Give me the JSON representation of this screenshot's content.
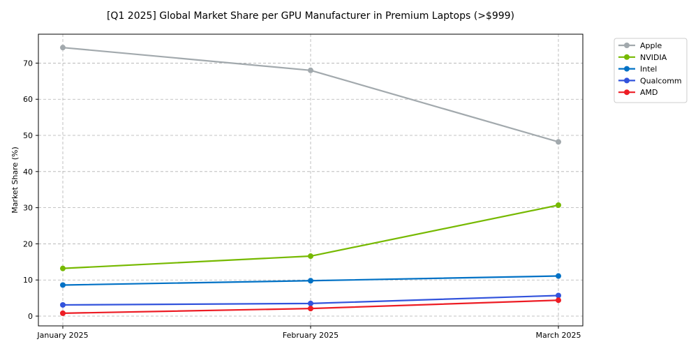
{
  "chart_data": {
    "type": "line",
    "title": "[Q1 2025] Global Market Share per GPU Manufacturer in Premium Laptops (>$999)",
    "xlabel": "",
    "ylabel": "Market Share (%)",
    "categories": [
      "January 2025",
      "February 2025",
      "March 2025"
    ],
    "ylim": [
      -2.7,
      78
    ],
    "yticks": [
      0,
      10,
      20,
      30,
      40,
      50,
      60,
      70
    ],
    "grid": true,
    "legend_position": "outside-top-right",
    "series": [
      {
        "name": "Apple",
        "color": "#a2a9ad",
        "values": [
          74.3,
          68.0,
          48.2
        ]
      },
      {
        "name": "NVIDIA",
        "color": "#76b900",
        "values": [
          13.2,
          16.6,
          30.7
        ]
      },
      {
        "name": "Intel",
        "color": "#0071c5",
        "values": [
          8.6,
          9.8,
          11.1
        ]
      },
      {
        "name": "Qualcomm",
        "color": "#3253dc",
        "values": [
          3.1,
          3.5,
          5.7
        ]
      },
      {
        "name": "AMD",
        "color": "#ed1c24",
        "values": [
          0.8,
          2.1,
          4.4
        ]
      }
    ]
  }
}
